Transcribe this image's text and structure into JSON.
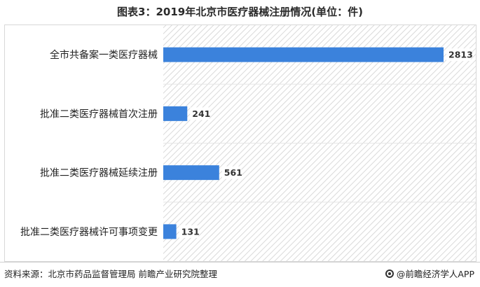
{
  "title": "图表3：2019年北京市医疗器械注册情况(单位：件)",
  "source": "资料来源：北京市药品监督管理局 前瞻产业研究院整理",
  "brand": "@前瞻经济学人APP",
  "colors": {
    "bar": "#3b82dc",
    "hatch": "#d9d9d9"
  },
  "chart_data": {
    "type": "bar",
    "orientation": "horizontal",
    "title": "图表3：2019年北京市医疗器械注册情况(单位：件)",
    "categories": [
      "全市共备案一类医疗器械",
      "批准二类医疗器械首次注册",
      "批准二类医疗器械延续注册",
      "批准二类医疗器械许可事项变更"
    ],
    "values": [
      2813,
      241,
      561,
      131
    ],
    "xlim": [
      0,
      2813
    ],
    "grid": false,
    "legend": "none"
  }
}
